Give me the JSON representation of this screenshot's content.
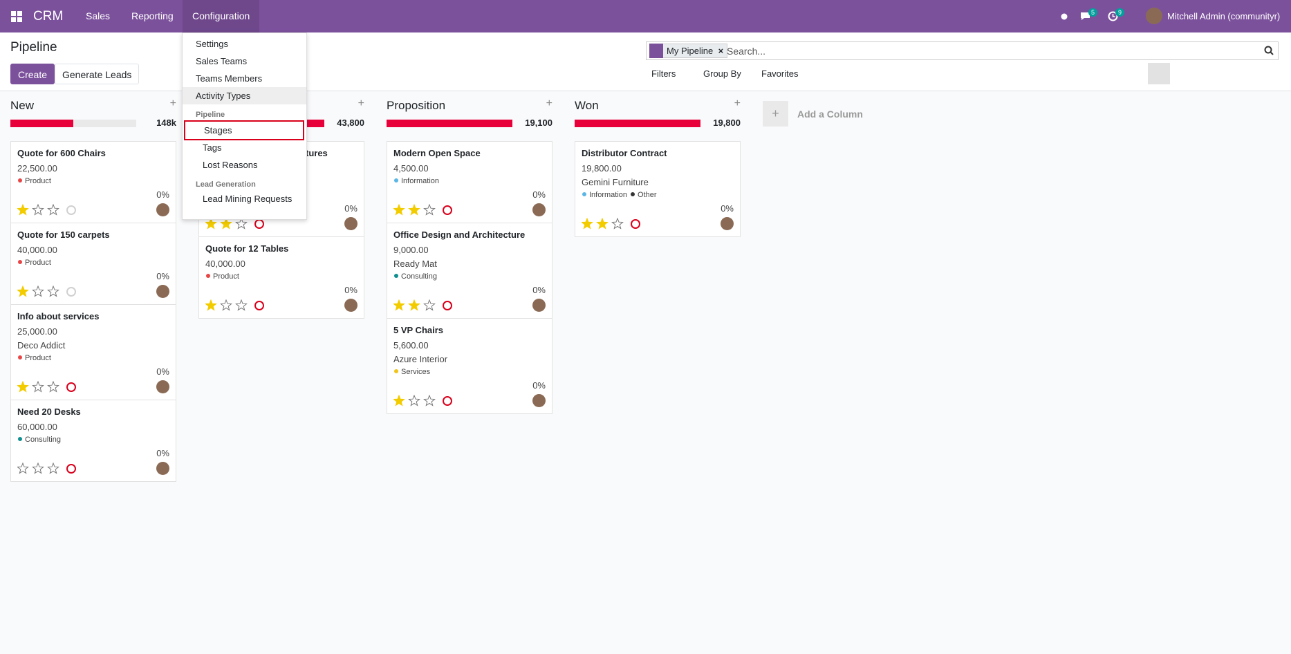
{
  "navbar": {
    "app": "CRM",
    "menu": [
      "Sales",
      "Reporting",
      "Configuration"
    ],
    "messages_badge": "5",
    "activities_badge": "9",
    "user": "Mitchell Admin (communityr)"
  },
  "dropdown": {
    "items": [
      "Settings",
      "Sales Teams",
      "Teams Members",
      "Activity Types"
    ],
    "sections": [
      {
        "title": "Pipeline",
        "items": [
          "Stages",
          "Tags",
          "Lost Reasons"
        ]
      },
      {
        "title": "Lead Generation",
        "items": [
          "Lead Mining Requests"
        ]
      }
    ]
  },
  "control": {
    "title": "Pipeline",
    "buttons": [
      "Create",
      "Generate Leads"
    ],
    "facet": "My Pipeline",
    "search_placeholder": "Search...",
    "filters": [
      "Filters",
      "Group By",
      "Favorites"
    ]
  },
  "kanban": {
    "add_column": "Add a Column",
    "columns": [
      {
        "title": "New",
        "total": "148k",
        "cards": [
          {
            "title": "Quote for 600 Chairs",
            "amount": "22,500.00",
            "tags": [
              {
                "name": "Product",
                "color": "#e84646"
              }
            ],
            "probability": "0%",
            "priority": 1,
            "activity_color": "#d0d0d0"
          },
          {
            "title": "Quote for 150 carpets",
            "amount": "40,000.00",
            "tags": [
              {
                "name": "Product",
                "color": "#e84646"
              }
            ],
            "probability": "0%",
            "priority": 1,
            "activity_color": "#d0d0d0"
          },
          {
            "title": "Info about services",
            "amount": "25,000.00",
            "partner": "Deco Addict",
            "tags": [
              {
                "name": "Product",
                "color": "#e84646"
              }
            ],
            "probability": "0%",
            "priority": 1,
            "activity_color": "#d9001b"
          },
          {
            "title": "Need 20 Desks",
            "amount": "60,000.00",
            "tags": [
              {
                "name": "Consulting",
                "color": "#0f8f8f"
              }
            ],
            "probability": "0%",
            "priority": 0,
            "activity_color": "#d9001b"
          }
        ]
      },
      {
        "total": "43,800",
        "cards": [
          {
            "title": "tures",
            "probability": "0%",
            "priority": 2,
            "activity_color": "#d9001b"
          },
          {
            "title": "Quote for 12 Tables",
            "amount": "40,000.00",
            "tags": [
              {
                "name": "Product",
                "color": "#e84646"
              }
            ],
            "probability": "0%",
            "priority": 1,
            "activity_color": "#d9001b"
          }
        ]
      },
      {
        "title": "Proposition",
        "total": "19,100",
        "cards": [
          {
            "title": "Modern Open Space",
            "amount": "4,500.00",
            "tags": [
              {
                "name": "Information",
                "color": "#5bb6e6"
              }
            ],
            "probability": "0%",
            "priority": 2,
            "activity_color": "#d9001b"
          },
          {
            "title": "Office Design and Architecture",
            "amount": "9,000.00",
            "partner": "Ready Mat",
            "tags": [
              {
                "name": "Consulting",
                "color": "#0f8f8f"
              }
            ],
            "probability": "0%",
            "priority": 2,
            "activity_color": "#d9001b"
          },
          {
            "title": "5 VP Chairs",
            "amount": "5,600.00",
            "partner": "Azure Interior",
            "tags": [
              {
                "name": "Services",
                "color": "#f0c419"
              }
            ],
            "probability": "0%",
            "priority": 1,
            "activity_color": "#d9001b"
          }
        ]
      },
      {
        "title": "Won",
        "total": "19,800",
        "cards": [
          {
            "title": "Distributor Contract",
            "amount": "19,800.00",
            "partner": "Gemini Furniture",
            "tags": [
              {
                "name": "Information",
                "color": "#5bb6e6"
              },
              {
                "name": "Other",
                "color": "#333333"
              }
            ],
            "probability": "0%",
            "priority": 2,
            "activity_color": "#d9001b"
          }
        ]
      }
    ]
  }
}
